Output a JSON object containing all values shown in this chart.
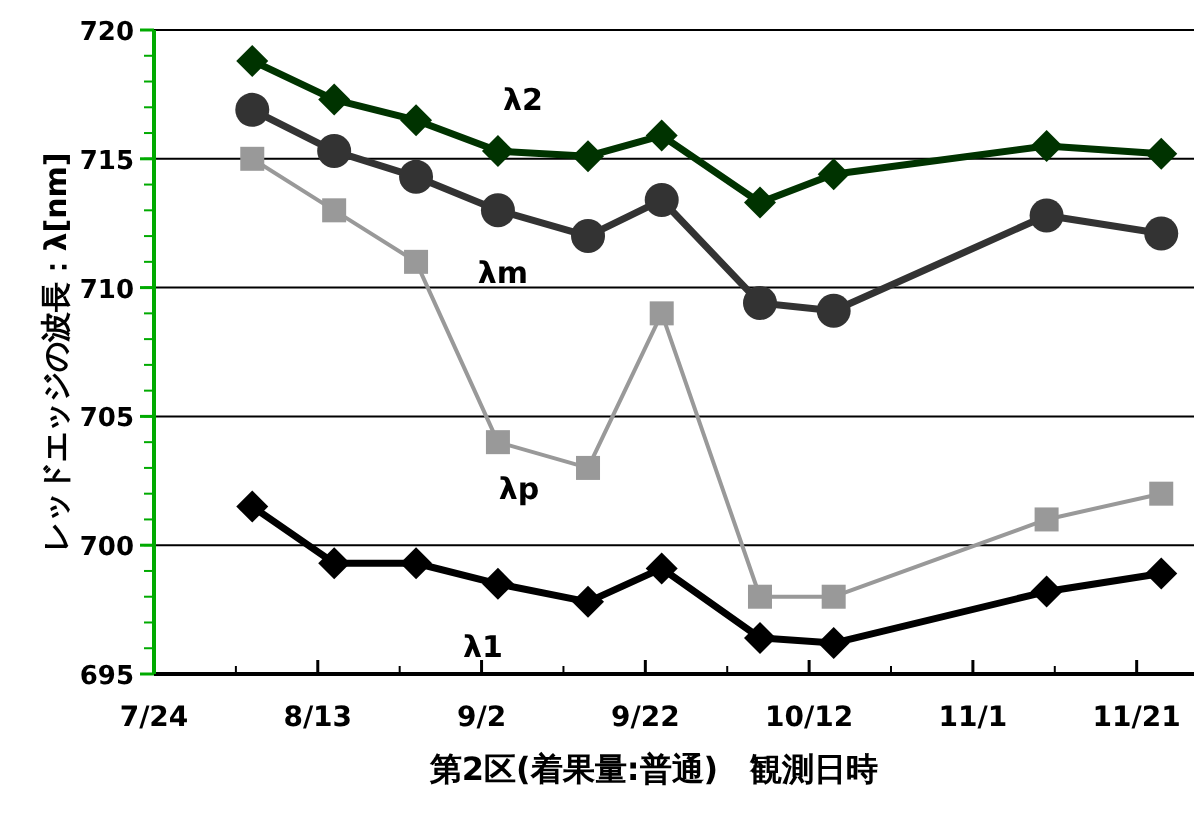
{
  "chart_data": {
    "type": "line",
    "xlabel": "第2区(着果量:普通)　観測日時",
    "ylabel": "レッドエッジの波長：λ[nm]",
    "x": [
      "--08-05",
      "--08-15",
      "--08-25",
      "--09-04",
      "--09-15",
      "--09-24",
      "--10-06",
      "--10-15",
      "--11-10",
      "--11-24"
    ],
    "xlim": [
      "--07-24",
      "--11-28"
    ],
    "xticks": [
      {
        "value": "--07-24",
        "label": "7/24"
      },
      {
        "value": "--08-13",
        "label": "8/13"
      },
      {
        "value": "--09-02",
        "label": "9/2"
      },
      {
        "value": "--09-22",
        "label": "9/22"
      },
      {
        "value": "--10-12",
        "label": "10/12"
      },
      {
        "value": "--11-01",
        "label": "11/1"
      },
      {
        "value": "--11-21",
        "label": "11/21"
      }
    ],
    "ylim": [
      695,
      720
    ],
    "yticks": [
      695,
      700,
      705,
      710,
      715,
      720
    ],
    "grid": "y",
    "line_style": "solid",
    "series": [
      {
        "name": "λ2",
        "color": "#003300",
        "marker": "diamond",
        "values": [
          718.8,
          717.3,
          716.5,
          715.3,
          715.1,
          715.9,
          713.3,
          714.4,
          715.5,
          715.2
        ]
      },
      {
        "name": "λm",
        "color": "#333333",
        "marker": "circle",
        "values": [
          716.9,
          715.3,
          714.3,
          713.0,
          712.0,
          713.4,
          709.4,
          709.1,
          712.8,
          712.1
        ]
      },
      {
        "name": "λp",
        "color": "#999999",
        "marker": "square",
        "values": [
          715,
          713,
          711,
          704,
          703,
          709,
          698,
          698,
          701,
          702
        ]
      },
      {
        "name": "λ1",
        "color": "#000000",
        "marker": "diamond",
        "values": [
          701.5,
          699.3,
          699.3,
          698.5,
          697.8,
          699.1,
          696.4,
          696.2,
          698.2,
          698.9
        ]
      }
    ]
  }
}
